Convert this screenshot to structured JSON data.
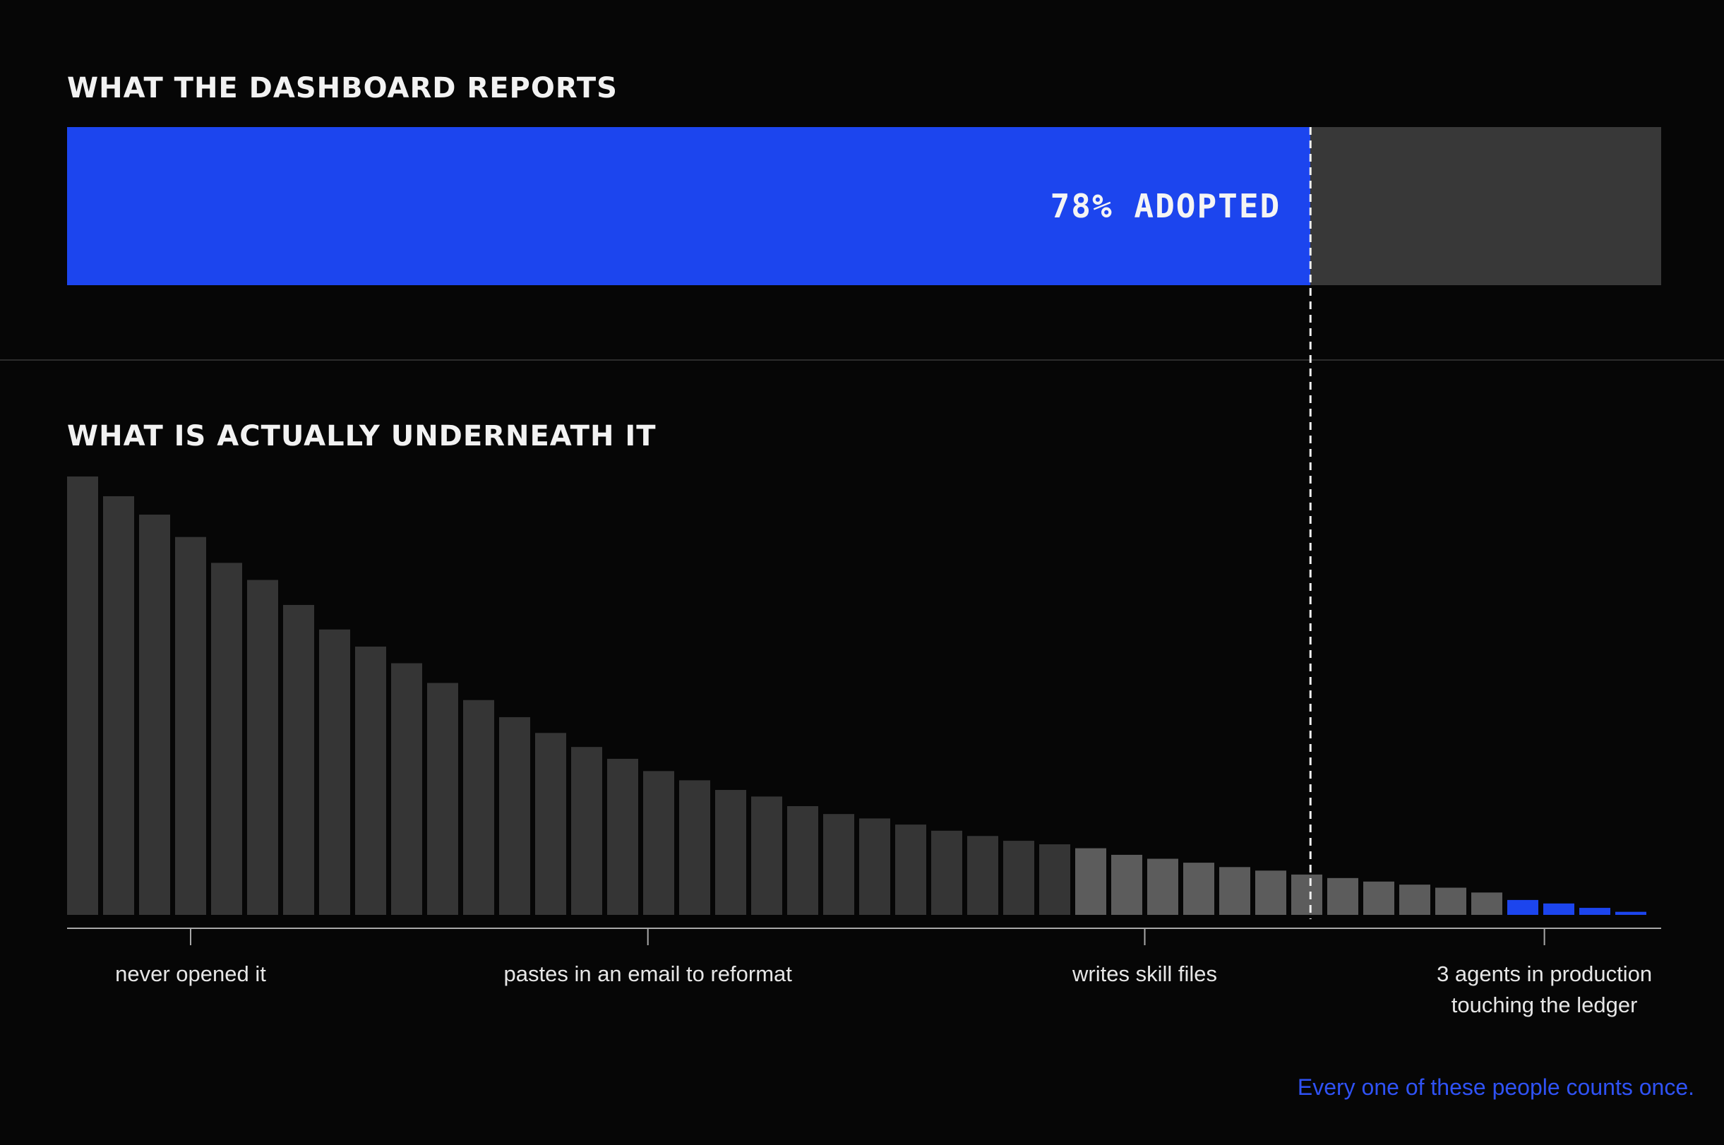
{
  "top_section": {
    "heading": "WHAT THE DASHBOARD REPORTS",
    "adoption_label": "78% ADOPTED",
    "adoption_fraction": 0.78
  },
  "bottom_section": {
    "heading": "WHAT IS ACTUALLY UNDERNEATH IT"
  },
  "footnote": "Every one of these people counts once.",
  "colors": {
    "background": "#060606",
    "accent_blue": "#1c45ee",
    "bar_dark": "#353535",
    "bar_light": "#5c5c5c",
    "bar_remainder": "#383838"
  },
  "chart_data": {
    "type": "bar",
    "title": "WHAT IS ACTUALLY UNDERNEATH IT",
    "xlabel": "",
    "ylabel": "",
    "ylim": [
      0,
      100
    ],
    "grid": false,
    "values": [
      100,
      95.5,
      91.3,
      86.2,
      80.3,
      76.4,
      70.7,
      65.1,
      61.2,
      57.4,
      52.9,
      49.0,
      45.1,
      41.5,
      38.3,
      35.6,
      32.8,
      30.7,
      28.5,
      27.0,
      24.8,
      23.0,
      22.0,
      20.6,
      19.2,
      18.0,
      16.9,
      16.1,
      15.2,
      13.7,
      12.8,
      11.9,
      10.9,
      10.1,
      9.2,
      8.4,
      7.6,
      6.9,
      6.2,
      5.1,
      3.4,
      2.6,
      1.6,
      0.7
    ],
    "shades": [
      "dark",
      "dark",
      "dark",
      "dark",
      "dark",
      "dark",
      "dark",
      "dark",
      "dark",
      "dark",
      "dark",
      "dark",
      "dark",
      "dark",
      "dark",
      "dark",
      "dark",
      "dark",
      "dark",
      "dark",
      "dark",
      "dark",
      "dark",
      "dark",
      "dark",
      "dark",
      "dark",
      "dark",
      "light",
      "light",
      "light",
      "light",
      "light",
      "light",
      "light",
      "light",
      "light",
      "light",
      "light",
      "light",
      "blue",
      "blue",
      "blue",
      "blue"
    ],
    "axis_labels": [
      {
        "text": "never opened it",
        "bar_index": 3
      },
      {
        "text": "pastes in an email to reformat",
        "bar_index": 15.7
      },
      {
        "text": "writes skill files",
        "bar_index": 29.5
      },
      {
        "text": "3 agents in production touching the ledger",
        "bar_index": 40.6
      }
    ],
    "threshold": {
      "fraction": 0.78,
      "style": "dashed",
      "label": "78% ADOPTED"
    }
  }
}
